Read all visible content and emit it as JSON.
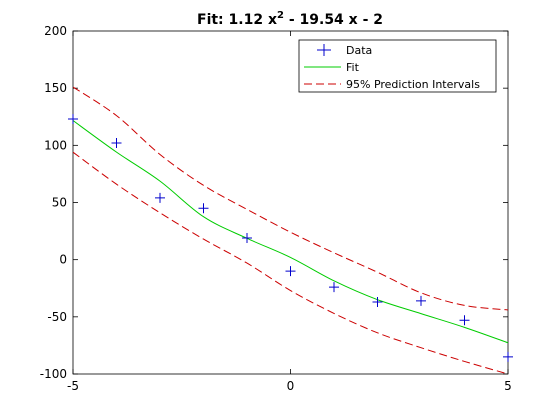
{
  "chart_data": {
    "type": "line",
    "title_parts": {
      "before": "Fit: 1.12 x",
      "sup": "2",
      "after": " - 19.54 x - 2"
    },
    "xlabel": "",
    "ylabel": "",
    "xlim": [
      -5,
      5
    ],
    "ylim": [
      -100,
      200
    ],
    "xticks": [
      -5,
      0,
      5
    ],
    "yticks": [
      -100,
      -50,
      0,
      50,
      100,
      150,
      200
    ],
    "grid": false,
    "legend_position": "top-right",
    "colors": {
      "data": "#0000cc",
      "fit": "#00cc00",
      "interval": "#cc0000"
    },
    "series": [
      {
        "name": "Data",
        "style": "markers-plus",
        "x": [
          -5,
          -4,
          -3,
          -2,
          -1,
          0,
          1,
          2,
          3,
          4,
          5
        ],
        "y": [
          123,
          102,
          54,
          45,
          19,
          -10,
          -24,
          -37,
          -36,
          -53,
          -85
        ]
      },
      {
        "name": "Fit",
        "style": "solid-line",
        "x": [
          -5,
          -4,
          -3,
          -2,
          -1,
          0,
          1,
          2,
          3,
          4,
          5
        ],
        "y": [
          121.7,
          94.08,
          68.7,
          37.56,
          18.66,
          1.96,
          -18.5,
          -35.0,
          -47.2,
          -59.2,
          -72.7
        ]
      },
      {
        "name": "95% Prediction Intervals",
        "style": "dashed-line",
        "x": [
          -5,
          -4,
          -3,
          -2,
          -1,
          0,
          1,
          2,
          3,
          4,
          5
        ],
        "y": [
          151,
          126,
          92,
          65,
          44,
          24,
          6,
          -11,
          -29,
          -40,
          -44
        ]
      },
      {
        "name": "",
        "style": "dashed-line",
        "x": [
          -5,
          -4,
          -3,
          -2,
          -1,
          0,
          1,
          2,
          3,
          4,
          5
        ],
        "y": [
          94,
          66,
          41,
          18,
          -3,
          -27,
          -47,
          -64,
          -77,
          -89,
          -100
        ]
      }
    ]
  }
}
